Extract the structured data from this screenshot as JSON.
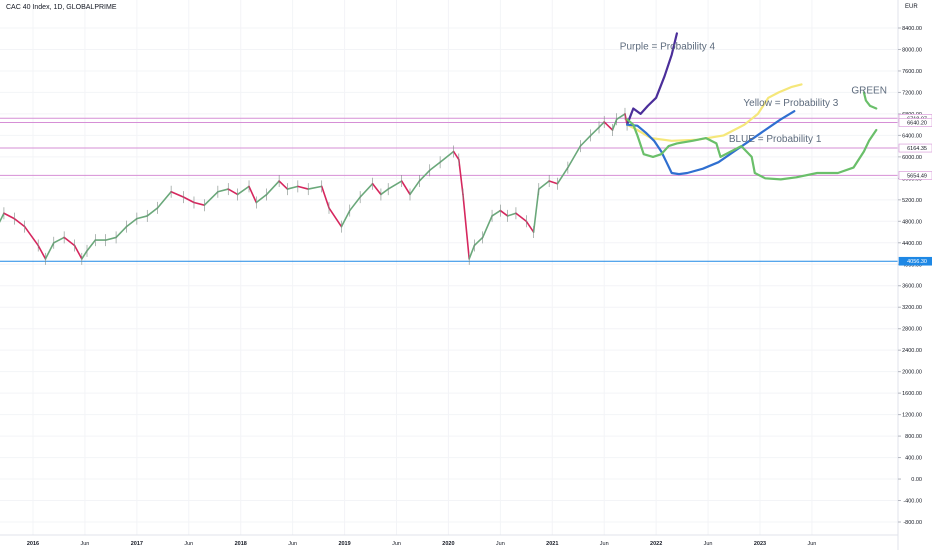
{
  "header": {
    "symbol": "CAC 40 Index, 1D, GLOBALPRIME",
    "currency": "EUR"
  },
  "chart_data": {
    "type": "line",
    "title": "CAC 40 Index, 1D, GLOBALPRIME",
    "ylabel": "EUR",
    "ylim": [
      -900,
      8900
    ],
    "y_ticks": [
      8400,
      8000,
      7600,
      7200,
      6800,
      6400,
      6000,
      5600,
      5200,
      4800,
      4400,
      4000,
      3600,
      3200,
      2800,
      2400,
      2000,
      1600,
      1200,
      800,
      400,
      0,
      -400,
      -800
    ],
    "x_ticks": [
      {
        "t": 2016.0,
        "label": "2016"
      },
      {
        "t": 2016.5,
        "label": "Jun"
      },
      {
        "t": 2017.0,
        "label": "2017"
      },
      {
        "t": 2017.5,
        "label": "Jun"
      },
      {
        "t": 2018.0,
        "label": "2018"
      },
      {
        "t": 2018.5,
        "label": "Jun"
      },
      {
        "t": 2019.0,
        "label": "2019"
      },
      {
        "t": 2019.5,
        "label": "Jun"
      },
      {
        "t": 2020.0,
        "label": "2020"
      },
      {
        "t": 2020.5,
        "label": "Jun"
      },
      {
        "t": 2021.0,
        "label": "2021"
      },
      {
        "t": 2021.5,
        "label": "Jun"
      },
      {
        "t": 2022.0,
        "label": "2022"
      },
      {
        "t": 2022.5,
        "label": "Jun"
      },
      {
        "t": 2023.0,
        "label": "2023"
      },
      {
        "t": 2023.5,
        "label": "Jun"
      }
    ],
    "price_series": {
      "name": "CAC 40",
      "points": [
        [
          2015.63,
          4600
        ],
        [
          2015.72,
          4950
        ],
        [
          2015.82,
          4850
        ],
        [
          2015.92,
          4700
        ],
        [
          2016.05,
          4350
        ],
        [
          2016.12,
          4100
        ],
        [
          2016.2,
          4400
        ],
        [
          2016.3,
          4500
        ],
        [
          2016.4,
          4350
        ],
        [
          2016.47,
          4100
        ],
        [
          2016.52,
          4250
        ],
        [
          2016.6,
          4450
        ],
        [
          2016.7,
          4450
        ],
        [
          2016.8,
          4500
        ],
        [
          2016.9,
          4700
        ],
        [
          2017.0,
          4850
        ],
        [
          2017.1,
          4900
        ],
        [
          2017.2,
          5050
        ],
        [
          2017.33,
          5350
        ],
        [
          2017.45,
          5250
        ],
        [
          2017.55,
          5150
        ],
        [
          2017.65,
          5100
        ],
        [
          2017.78,
          5350
        ],
        [
          2017.88,
          5400
        ],
        [
          2017.97,
          5300
        ],
        [
          2018.08,
          5450
        ],
        [
          2018.15,
          5150
        ],
        [
          2018.25,
          5300
        ],
        [
          2018.37,
          5550
        ],
        [
          2018.45,
          5400
        ],
        [
          2018.55,
          5450
        ],
        [
          2018.65,
          5400
        ],
        [
          2018.78,
          5450
        ],
        [
          2018.85,
          5050
        ],
        [
          2018.97,
          4700
        ],
        [
          2019.05,
          5000
        ],
        [
          2019.15,
          5250
        ],
        [
          2019.27,
          5500
        ],
        [
          2019.35,
          5300
        ],
        [
          2019.42,
          5400
        ],
        [
          2019.55,
          5550
        ],
        [
          2019.63,
          5300
        ],
        [
          2019.72,
          5550
        ],
        [
          2019.82,
          5750
        ],
        [
          2019.92,
          5900
        ],
        [
          2020.05,
          6100
        ],
        [
          2020.1,
          5950
        ],
        [
          2020.14,
          5300
        ],
        [
          2020.2,
          4100
        ],
        [
          2020.25,
          4350
        ],
        [
          2020.33,
          4500
        ],
        [
          2020.42,
          4900
        ],
        [
          2020.5,
          5000
        ],
        [
          2020.57,
          4900
        ],
        [
          2020.65,
          4950
        ],
        [
          2020.75,
          4800
        ],
        [
          2020.82,
          4600
        ],
        [
          2020.87,
          5400
        ],
        [
          2020.97,
          5550
        ],
        [
          2021.05,
          5500
        ],
        [
          2021.15,
          5800
        ],
        [
          2021.27,
          6200
        ],
        [
          2021.37,
          6400
        ],
        [
          2021.45,
          6550
        ],
        [
          2021.5,
          6650
        ],
        [
          2021.58,
          6500
        ],
        [
          2021.62,
          6700
        ],
        [
          2021.7,
          6800
        ],
        [
          2021.72,
          6600
        ]
      ]
    },
    "probability_paths": [
      {
        "color": "#4b2e9a",
        "points": [
          [
            2021.72,
            6600
          ],
          [
            2021.78,
            6900
          ],
          [
            2021.85,
            6800
          ],
          [
            2021.92,
            6950
          ],
          [
            2022.0,
            7100
          ],
          [
            2022.08,
            7500
          ],
          [
            2022.15,
            7900
          ],
          [
            2022.2,
            8300
          ]
        ]
      },
      {
        "color": "#f5e77a",
        "points": [
          [
            2021.72,
            6600
          ],
          [
            2021.82,
            6500
          ],
          [
            2021.95,
            6350
          ],
          [
            2022.15,
            6300
          ],
          [
            2022.4,
            6320
          ],
          [
            2022.65,
            6400
          ],
          [
            2022.85,
            6600
          ],
          [
            2022.98,
            6800
          ],
          [
            2023.08,
            7100
          ],
          [
            2023.18,
            7200
          ],
          [
            2023.3,
            7300
          ],
          [
            2023.4,
            7350
          ]
        ]
      },
      {
        "color": "#2f6fd0",
        "points": [
          [
            2021.72,
            6600
          ],
          [
            2021.82,
            6580
          ],
          [
            2021.9,
            6450
          ],
          [
            2021.98,
            6300
          ],
          [
            2022.05,
            6100
          ],
          [
            2022.1,
            5900
          ],
          [
            2022.15,
            5700
          ],
          [
            2022.22,
            5680
          ],
          [
            2022.3,
            5700
          ],
          [
            2022.45,
            5780
          ],
          [
            2022.6,
            5900
          ],
          [
            2022.75,
            6100
          ],
          [
            2022.9,
            6300
          ],
          [
            2023.05,
            6500
          ],
          [
            2023.2,
            6700
          ],
          [
            2023.33,
            6850
          ]
        ]
      },
      {
        "color": "#6abf6a",
        "points": [
          [
            2021.72,
            6700
          ],
          [
            2021.78,
            6600
          ],
          [
            2021.82,
            6400
          ],
          [
            2021.88,
            6050
          ],
          [
            2021.97,
            6000
          ],
          [
            2022.05,
            6050
          ],
          [
            2022.12,
            6200
          ],
          [
            2022.2,
            6250
          ],
          [
            2022.35,
            6300
          ],
          [
            2022.48,
            6350
          ],
          [
            2022.58,
            6250
          ],
          [
            2022.62,
            6000
          ],
          [
            2022.72,
            6100
          ],
          [
            2022.82,
            6200
          ],
          [
            2022.92,
            6000
          ],
          [
            2022.95,
            5700
          ],
          [
            2023.05,
            5600
          ],
          [
            2023.2,
            5580
          ],
          [
            2023.35,
            5620
          ],
          [
            2023.55,
            5700
          ],
          [
            2023.75,
            5700
          ],
          [
            2023.9,
            5800
          ],
          [
            2024.0,
            6100
          ],
          [
            2024.05,
            6300
          ],
          [
            2024.12,
            6500
          ]
        ]
      },
      {
        "color": "#6abf6a",
        "points": [
          [
            2024.0,
            7200
          ],
          [
            2024.02,
            7050
          ],
          [
            2024.06,
            6950
          ],
          [
            2024.12,
            6900
          ]
        ]
      }
    ],
    "horizontal_levels": [
      {
        "value": 6718.07,
        "label": "6718.07",
        "color": "#d68fd6",
        "label_bg": "#ffffff",
        "label_fg": "#131722"
      },
      {
        "value": 6640.2,
        "label": "6640.20",
        "color": "#d68fd6",
        "label_bg": "#ffffff",
        "label_fg": "#131722"
      },
      {
        "value": 6164.35,
        "label": "6164.35",
        "color": "#d68fd6",
        "label_bg": "#ffffff",
        "label_fg": "#131722"
      },
      {
        "value": 5654.49,
        "label": "5654.49",
        "color": "#d68fd6",
        "label_bg": "#ffffff",
        "label_fg": "#131722"
      },
      {
        "value": 4056.3,
        "label": "4056.30",
        "color": "#1e88e5",
        "label_bg": "#1e88e5",
        "label_fg": "#ffffff"
      }
    ],
    "annotations": [
      {
        "text": "Purple = Probability 4",
        "t": 2021.65,
        "v": 8000
      },
      {
        "text": "Yellow = Probability 3",
        "t": 2022.84,
        "v": 6950
      },
      {
        "text": "BLUE = Probability 1",
        "t": 2022.7,
        "v": 6280
      },
      {
        "text": "GREEN",
        "t": 2023.88,
        "v": 7180
      }
    ]
  }
}
